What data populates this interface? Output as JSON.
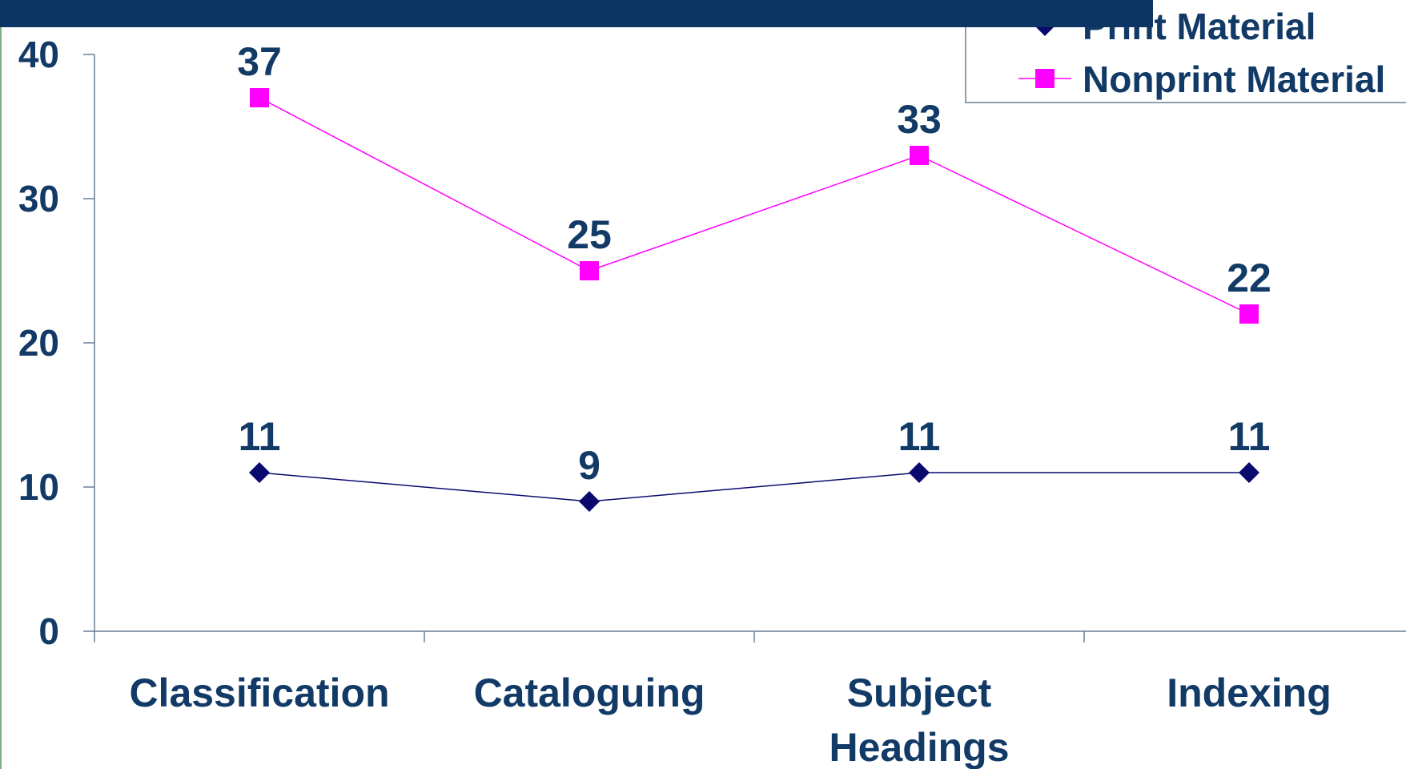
{
  "chart_data": {
    "type": "line",
    "categories": [
      "Classification",
      "Cataloguing",
      "Subject Headings",
      "Indexing"
    ],
    "category_lines": [
      [
        "Classification"
      ],
      [
        "Cataloguing"
      ],
      [
        "Subject",
        "Headings"
      ],
      [
        "Indexing"
      ]
    ],
    "series": [
      {
        "name": "Print Material",
        "values": [
          11,
          9,
          11,
          11
        ],
        "color": "#0a0a6e",
        "marker": "diamond"
      },
      {
        "name": "Nonprint Material",
        "values": [
          37,
          25,
          33,
          22
        ],
        "color": "#ff00ff",
        "marker": "square"
      }
    ],
    "ylim": [
      0,
      40
    ],
    "yticks": [
      0,
      10,
      20,
      30,
      40
    ],
    "data_labels": true,
    "grid": false,
    "legend_position": "top-right",
    "title": "",
    "xlabel": "",
    "ylabel": ""
  },
  "colors": {
    "header_bar": "#0d3563",
    "text": "#123a66",
    "axis": "#6b7f99",
    "left_rule": "#7fb07f"
  }
}
